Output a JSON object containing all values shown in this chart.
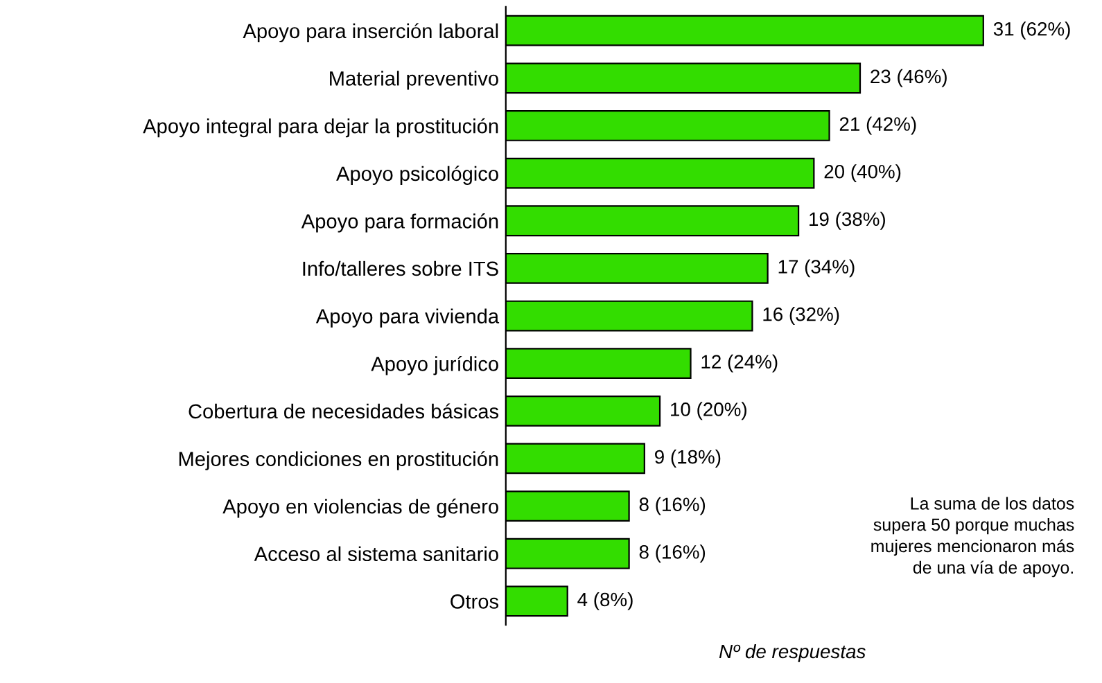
{
  "chart_data": {
    "type": "bar",
    "orientation": "horizontal",
    "categories": [
      "Apoyo para inserción laboral",
      "Material preventivo",
      "Apoyo integral para dejar la prostitución",
      "Apoyo psicológico",
      "Apoyo para formación",
      "Info/talleres sobre ITS",
      "Apoyo para vivienda",
      "Apoyo jurídico",
      "Cobertura de necesidades básicas",
      "Mejores condiciones en prostitución",
      "Apoyo en violencias de género",
      "Acceso al sistema sanitario",
      "Otros"
    ],
    "values": [
      31,
      23,
      21,
      20,
      19,
      17,
      16,
      12,
      10,
      9,
      8,
      8,
      4
    ],
    "value_labels": [
      "31 (62%)",
      "23 (46%)",
      "21 (42%)",
      "20 (40%)",
      "19 (38%)",
      "17 (34%)",
      "16 (32%)",
      "12 (24%)",
      "10 (20%)",
      "9 (18%)",
      "8 (16%)",
      "8 (16%)",
      "4 (8%)"
    ],
    "color": "#33dd00",
    "xlabel": "Nº de respuestas",
    "annotations": [
      "La suma de los datos\nsupera 50 porque muchas\nmujeres mencionaron más\nde una vía de apoyo."
    ],
    "grid": false,
    "legend": false
  }
}
